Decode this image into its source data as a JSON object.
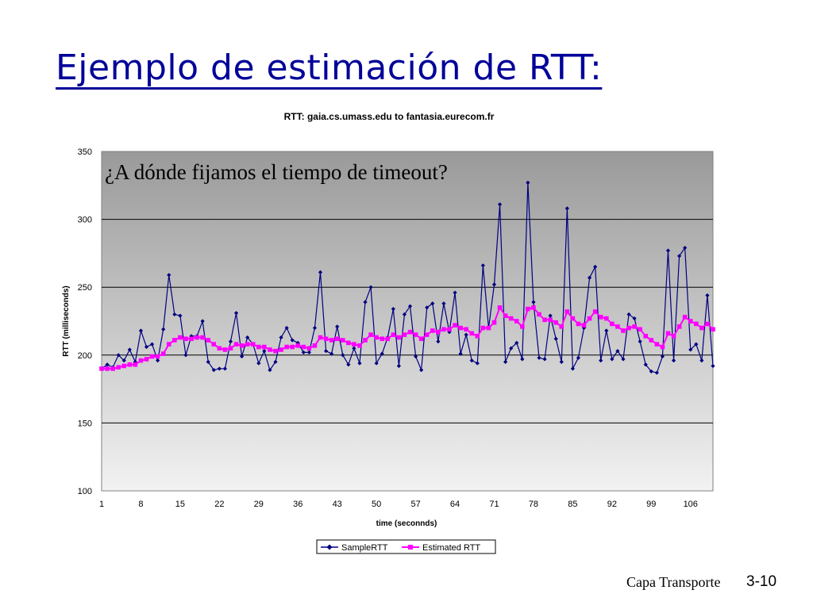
{
  "slide": {
    "title": "Ejemplo de estimación de RTT:",
    "footer_label": "Capa Transporte",
    "footer_page": "3-10"
  },
  "chart_data": {
    "type": "line",
    "title": "RTT: gaia.cs.umass.edu to fantasia.eurecom.fr",
    "annotation": "¿A dónde fijamos el tiempo de timeout?",
    "xlabel": "time (seconnds)",
    "ylabel": "RTT (milliseconds)",
    "ylim": [
      100,
      350
    ],
    "yticks": [
      100,
      150,
      200,
      250,
      300,
      350
    ],
    "xlim": [
      1,
      110
    ],
    "xticks": [
      1,
      8,
      15,
      22,
      29,
      36,
      43,
      50,
      57,
      64,
      71,
      78,
      85,
      92,
      99,
      106
    ],
    "grid": "horizontal",
    "legend": "bottom-center",
    "colors": {
      "SampleRTT": "#000080",
      "Estimated RTT": "#ff00ff"
    },
    "x": [
      1,
      2,
      3,
      4,
      5,
      6,
      7,
      8,
      9,
      10,
      11,
      12,
      13,
      14,
      15,
      16,
      17,
      18,
      19,
      20,
      21,
      22,
      23,
      24,
      25,
      26,
      27,
      28,
      29,
      30,
      31,
      32,
      33,
      34,
      35,
      36,
      37,
      38,
      39,
      40,
      41,
      42,
      43,
      44,
      45,
      46,
      47,
      48,
      49,
      50,
      51,
      52,
      53,
      54,
      55,
      56,
      57,
      58,
      59,
      60,
      61,
      62,
      63,
      64,
      65,
      66,
      67,
      68,
      69,
      70,
      71,
      72,
      73,
      74,
      75,
      76,
      77,
      78,
      79,
      80,
      81,
      82,
      83,
      84,
      85,
      86,
      87,
      88,
      89,
      90,
      91,
      92,
      93,
      94,
      95,
      96,
      97,
      98,
      99,
      100,
      101,
      102,
      103,
      104,
      105,
      106,
      107,
      108,
      109,
      110
    ],
    "series": [
      {
        "name": "SampleRTT",
        "values": [
          190,
          193,
          191,
          200,
          196,
          204,
          195,
          218,
          206,
          208,
          196,
          219,
          259,
          230,
          229,
          200,
          214,
          214,
          225,
          195,
          189,
          190,
          190,
          210,
          231,
          199,
          213,
          208,
          194,
          203,
          189,
          195,
          213,
          220,
          211,
          209,
          202,
          202,
          220,
          261,
          203,
          201,
          221,
          200,
          193,
          205,
          194,
          239,
          250,
          194,
          201,
          213,
          234,
          192,
          230,
          236,
          199,
          189,
          235,
          238,
          210,
          238,
          217,
          246,
          201,
          215,
          196,
          194,
          266,
          220,
          252,
          311,
          195,
          205,
          209,
          197,
          327,
          239,
          198,
          197,
          229,
          212,
          195,
          308,
          190,
          198,
          220,
          257,
          265,
          196,
          218,
          197,
          203,
          197,
          230,
          227,
          210,
          193,
          188,
          187,
          199,
          277,
          196,
          273,
          279,
          204,
          208,
          196,
          244,
          192
        ]
      },
      {
        "name": "Estimated RTT",
        "values": [
          190,
          190,
          190,
          191,
          192,
          193,
          193,
          196,
          197,
          199,
          199,
          201,
          208,
          211,
          213,
          212,
          212,
          213,
          213,
          211,
          208,
          205,
          204,
          205,
          208,
          207,
          208,
          208,
          206,
          206,
          204,
          203,
          204,
          206,
          206,
          207,
          206,
          205,
          207,
          213,
          212,
          211,
          212,
          211,
          209,
          208,
          207,
          211,
          215,
          213,
          212,
          212,
          215,
          213,
          215,
          217,
          215,
          212,
          215,
          218,
          217,
          219,
          219,
          222,
          220,
          219,
          216,
          214,
          220,
          220,
          224,
          235,
          229,
          227,
          225,
          221,
          234,
          235,
          230,
          226,
          226,
          224,
          221,
          232,
          227,
          223,
          222,
          227,
          232,
          228,
          227,
          223,
          221,
          218,
          220,
          221,
          219,
          214,
          211,
          208,
          206,
          216,
          214,
          221,
          228,
          225,
          223,
          220,
          223,
          219
        ]
      }
    ]
  }
}
